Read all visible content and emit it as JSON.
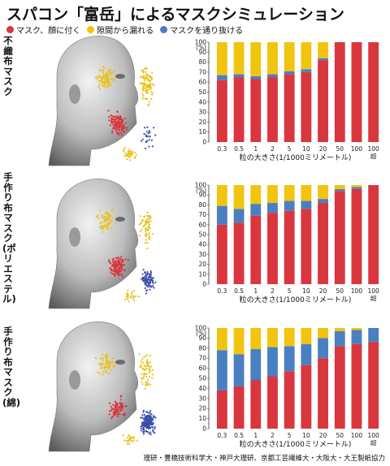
{
  "header": {
    "title": "スパコン「富岳」によるマスクシミュレーション"
  },
  "legend": [
    {
      "label": "マスク、顔に付く",
      "color": "#d9363e"
    },
    {
      "label": "隙間から漏れる",
      "color": "#f1c40f"
    },
    {
      "label": "マスクを通り抜ける",
      "color": "#4a7fc1"
    }
  ],
  "footer": {
    "credit": "理研・豊橋技術科学大・神戸大理研、京都工芸繊維大・大阪大・大王製紙協力"
  },
  "chart_data": [
    {
      "type": "bar",
      "stacked": true,
      "row_label": "不織布マスク",
      "categories": [
        "0.3",
        "0.5",
        "1",
        "2",
        "5",
        "10",
        "20",
        "50",
        "100",
        "100超"
      ],
      "series": [
        {
          "name": "マスク、顔に付く",
          "color": "#d9363e",
          "values": [
            62,
            65,
            63,
            65,
            68,
            70,
            82,
            100,
            100,
            100
          ]
        },
        {
          "name": "マスクを通り抜ける",
          "color": "#4a7fc1",
          "values": [
            5,
            3,
            3,
            3,
            3,
            3,
            2,
            0,
            0,
            0
          ]
        },
        {
          "name": "隙間から漏れる",
          "color": "#f1c40f",
          "values": [
            33,
            32,
            34,
            32,
            29,
            27,
            16,
            0,
            0,
            0
          ]
        }
      ],
      "ylabel_unit": "(%)",
      "yticks": [
        0,
        10,
        20,
        30,
        40,
        50,
        60,
        70,
        80,
        90,
        100
      ],
      "ylim": [
        0,
        100
      ],
      "xlabel": "粒の大きさ(1/1000ミリメートル)"
    },
    {
      "type": "bar",
      "stacked": true,
      "row_label": "手作り布マスク(ポリエステル)",
      "categories": [
        "0.3",
        "0.5",
        "1",
        "2",
        "5",
        "10",
        "20",
        "50",
        "100",
        "100超"
      ],
      "series": [
        {
          "name": "マスク、顔に付く",
          "color": "#d9363e",
          "values": [
            60,
            62,
            69,
            72,
            74,
            76,
            82,
            94,
            96,
            100
          ]
        },
        {
          "name": "マスクを通り抜ける",
          "color": "#4a7fc1",
          "values": [
            19,
            14,
            12,
            10,
            10,
            8,
            4,
            2,
            2,
            0
          ]
        },
        {
          "name": "隙間から漏れる",
          "color": "#f1c40f",
          "values": [
            21,
            24,
            19,
            18,
            16,
            16,
            14,
            4,
            2,
            0
          ]
        }
      ],
      "ylabel_unit": "(%)",
      "yticks": [
        0,
        10,
        20,
        30,
        40,
        50,
        60,
        70,
        80,
        90,
        100
      ],
      "ylim": [
        0,
        100
      ],
      "xlabel": "粒の大きさ(1/1000ミリメートル)"
    },
    {
      "type": "bar",
      "stacked": true,
      "row_label": "手作り布マスク(綿)",
      "categories": [
        "0.3",
        "0.5",
        "1",
        "2",
        "5",
        "10",
        "20",
        "50",
        "100",
        "100超"
      ],
      "series": [
        {
          "name": "マスク、顔に付く",
          "color": "#d9363e",
          "values": [
            38,
            42,
            48,
            52,
            57,
            63,
            70,
            82,
            84,
            86
          ]
        },
        {
          "name": "マスクを通り抜ける",
          "color": "#4a7fc1",
          "values": [
            40,
            32,
            31,
            29,
            25,
            21,
            20,
            15,
            14,
            14
          ]
        },
        {
          "name": "隙間から漏れる",
          "color": "#f1c40f",
          "values": [
            22,
            26,
            21,
            19,
            18,
            16,
            10,
            3,
            2,
            0
          ]
        }
      ],
      "ylabel_unit": "(%)",
      "yticks": [
        0,
        10,
        20,
        30,
        40,
        50,
        60,
        70,
        80,
        90,
        100
      ],
      "ylim": [
        0,
        100
      ],
      "xlabel": "粒の大きさ(1/1000ミリメートル)"
    }
  ]
}
